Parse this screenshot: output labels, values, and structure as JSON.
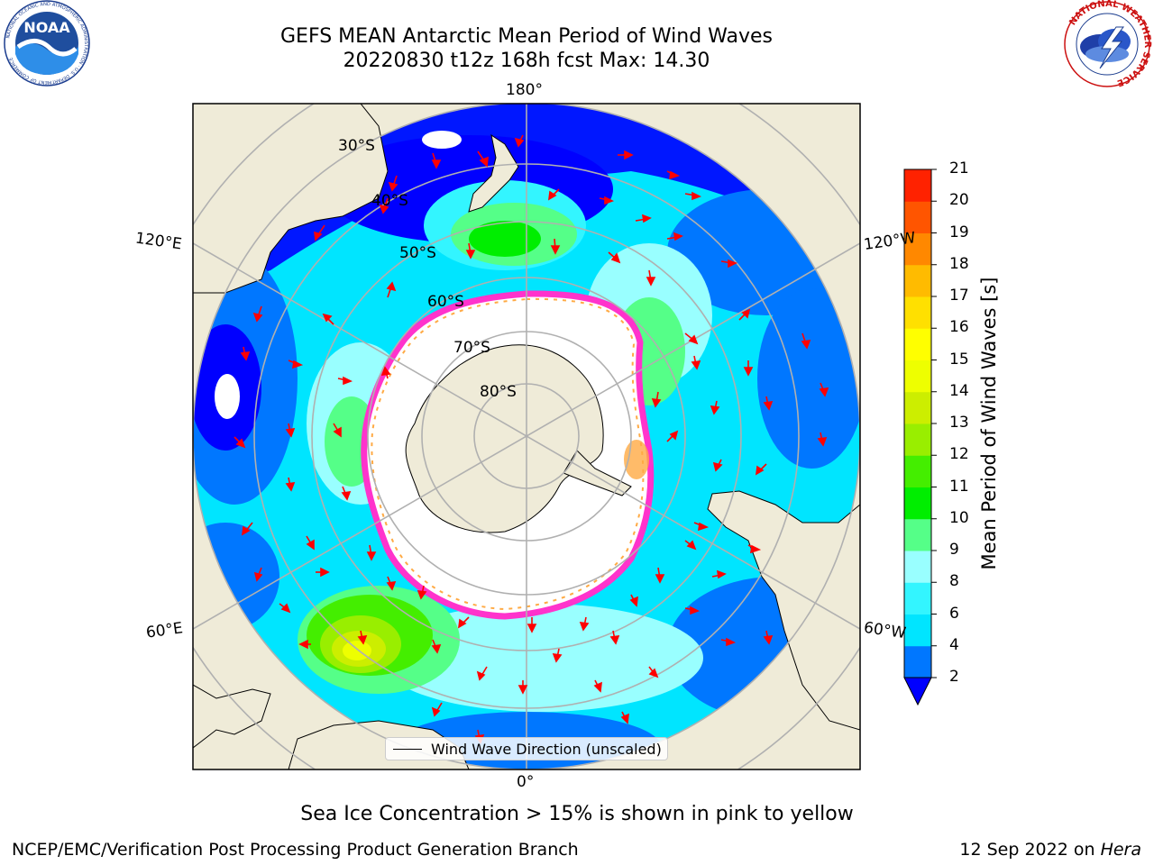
{
  "title": {
    "line1": "GEFS MEAN Antarctic Mean Period of Wind Waves",
    "line2": "20220830 t12z 168h fcst   Max: 14.30"
  },
  "logos": {
    "noaa_text": "NOAA",
    "noaa_ring": "NATIONAL OCEANIC AND ATMOSPHERIC ADMINISTRATION · U.S. DEPARTMENT OF COMMERCE",
    "nws_ring": "NATIONAL WEATHER SERVICE"
  },
  "map": {
    "projection": "south-polar-stereographic",
    "longitude_labels": {
      "top": "180°",
      "bottom": "0°",
      "left_upper": "120°E",
      "left_lower": "60°E",
      "right_upper": "120°W",
      "right_lower": "60°W"
    },
    "latitude_labels": [
      "30°S",
      "40°S",
      "50°S",
      "60°S",
      "70°S",
      "80°S"
    ],
    "colors": {
      "land": "#efebd8",
      "ice_edge": "#ff33cc",
      "ice_inner": "#ffaa44",
      "arrow": "#ff0000",
      "grid": "#b0b0b0"
    }
  },
  "legend": {
    "label": "Wind Wave Direction (unscaled)"
  },
  "colorbar": {
    "label": "Mean Period of Wind Waves [s]",
    "ticks": [
      "2",
      "4",
      "6",
      "8",
      "9",
      "10",
      "11",
      "12",
      "13",
      "14",
      "15",
      "16",
      "17",
      "18",
      "19",
      "20",
      "21"
    ],
    "colors": [
      "#0077ff",
      "#00e5ff",
      "#33f5ff",
      "#99ffff",
      "#55ff88",
      "#00ee00",
      "#44ee00",
      "#99ee00",
      "#ccee00",
      "#eeff00",
      "#ffff00",
      "#ffe000",
      "#ffbb00",
      "#ff8800",
      "#ff5500",
      "#ff2200"
    ],
    "extend_color": "#0000ff"
  },
  "note": "Sea Ice Concentration > 15% is shown in pink to yellow",
  "footer": {
    "left": "NCEP/EMC/Verification Post Processing Product Generation Branch",
    "right_prefix": "12 Sep 2022 on ",
    "right_host": "Hera"
  }
}
